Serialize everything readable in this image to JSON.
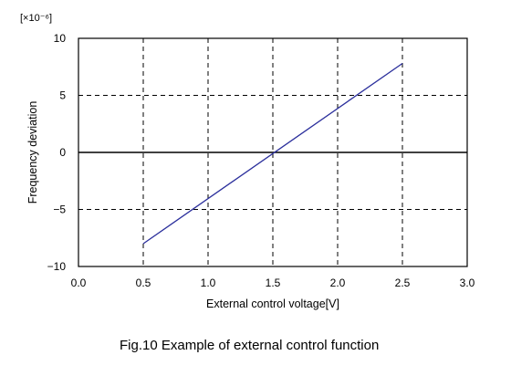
{
  "chart_data": {
    "type": "line",
    "x": [
      0.5,
      2.5
    ],
    "series": [
      {
        "values": [
          -8,
          7.8
        ],
        "color": "#2b2f9c"
      }
    ],
    "xlabel": "External control voltage[V]",
    "ylabel": "Frequency deviation",
    "scale_label": "[×10⁻⁶]",
    "caption": "Fig.10 Example of external control function",
    "xlim": [
      0.0,
      3.0
    ],
    "ylim": [
      -10,
      10
    ],
    "xticks": [
      "0.0",
      "0.5",
      "1.0",
      "1.5",
      "2.0",
      "2.5",
      "3.0"
    ],
    "yticks": [
      "10",
      "5",
      "0",
      "−5",
      "−10"
    ],
    "grid": "dashed",
    "legend": "none"
  }
}
